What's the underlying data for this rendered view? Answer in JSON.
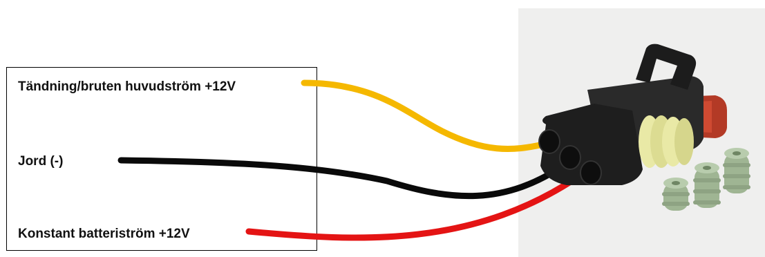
{
  "labels": {
    "ignition": "Tändning/bruten huvudström +12V",
    "ground": "Jord (-)",
    "battery": "Konstant batteriström +12V"
  },
  "colors": {
    "ignition_wire": "#f5b800",
    "ground_wire": "#0a0a0a",
    "battery_wire": "#e41414",
    "connector_body": "#1e1e1e",
    "seal": "#e9e9a6",
    "lock_tab": "#b33a26",
    "loose_seals": "#9fb593"
  },
  "icons": {
    "connector": "3-pin-waterproof-connector-icon",
    "seals": "rubber-seal-icon"
  }
}
